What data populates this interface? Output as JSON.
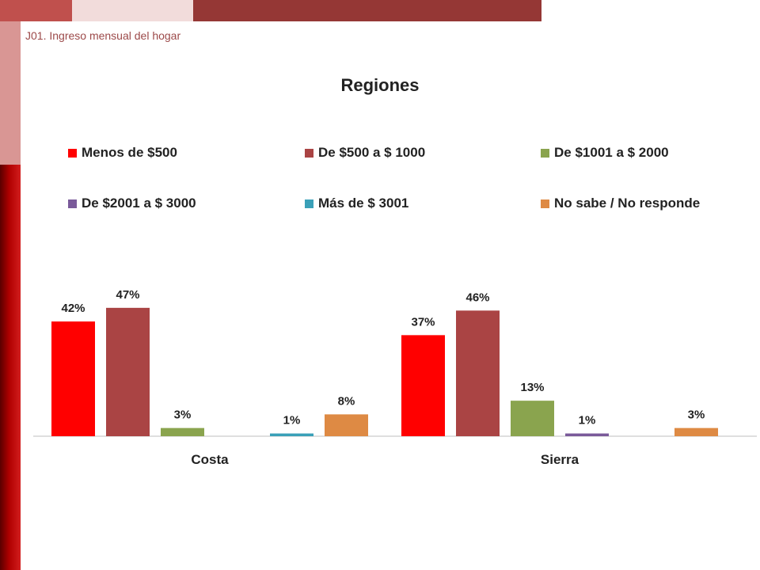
{
  "subtitle": "J01. Ingreso mensual del hogar",
  "chart_data": {
    "type": "bar",
    "title": "Regiones",
    "categories": [
      "Costa",
      "Sierra"
    ],
    "series": [
      {
        "name": "Menos de $500",
        "color": "#ff0000",
        "values": [
          42,
          37
        ],
        "labels": [
          "42%",
          "37%"
        ]
      },
      {
        "name": "De $500 a $ 1000",
        "color": "#aa4444",
        "values": [
          47,
          46
        ],
        "labels": [
          "47%",
          "46%"
        ]
      },
      {
        "name": "De $1001 a $ 2000",
        "color": "#8aa44e",
        "values": [
          3,
          13
        ],
        "labels": [
          "3%",
          "13%"
        ]
      },
      {
        "name": "De $2001 a $ 3000",
        "color": "#7a5a9a",
        "values": [
          0,
          1
        ],
        "labels": [
          "",
          "1%"
        ]
      },
      {
        "name": "Más de $ 3001",
        "color": "#3aa0b8",
        "values": [
          1,
          0
        ],
        "labels": [
          "1%",
          ""
        ]
      },
      {
        "name": "No sabe / No responde",
        "color": "#de8a44",
        "values": [
          8,
          3
        ],
        "labels": [
          "8%",
          "3%"
        ]
      }
    ],
    "ylim": [
      0,
      50
    ],
    "grid": false,
    "legend_position": "top"
  }
}
